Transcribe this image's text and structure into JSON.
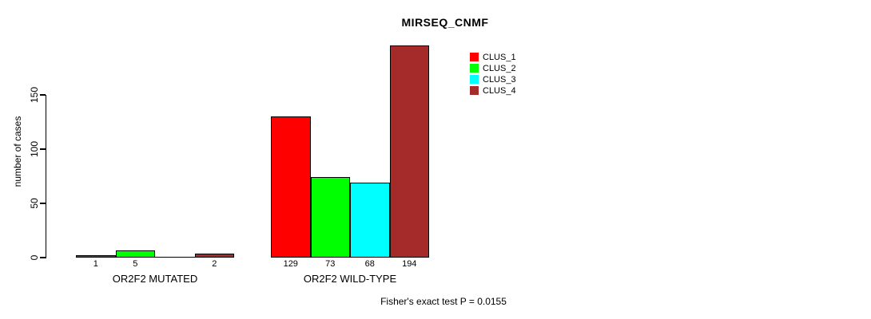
{
  "chart_data": {
    "type": "bar",
    "title": "MIRSEQ_CNMF",
    "ylabel": "number of cases",
    "xlabel": "",
    "categories": [
      "OR2F2 MUTATED",
      "OR2F2 WILD-TYPE"
    ],
    "series": [
      {
        "name": "CLUS_1",
        "color": "#ff0000",
        "values": [
          1,
          129
        ]
      },
      {
        "name": "CLUS_2",
        "color": "#00ff00",
        "values": [
          5,
          73
        ]
      },
      {
        "name": "CLUS_3",
        "color": "#00ffff",
        "values": [
          0,
          68
        ]
      },
      {
        "name": "CLUS_4",
        "color": "#a52a2a",
        "values": [
          2,
          194
        ]
      }
    ],
    "bar_value_labels": [
      [
        "1",
        "5",
        "",
        "2"
      ],
      [
        "129",
        "73",
        "68",
        "194"
      ]
    ],
    "yticks": [
      0,
      50,
      100,
      150
    ],
    "ylim": [
      0,
      195
    ],
    "grid": false,
    "legend_position": "top-right",
    "legend_entries": [
      "CLUS_1",
      "CLUS_2",
      "CLUS_3",
      "CLUS_4"
    ],
    "annotation": "Fisher's exact test P = 0.0155"
  }
}
